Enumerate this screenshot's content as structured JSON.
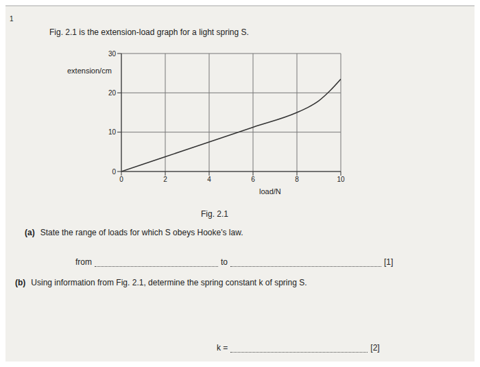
{
  "question_number": "1",
  "intro": "Fig. 2.1 is the extension-load graph for a light spring S.",
  "figure_caption": "Fig. 2.1",
  "chart_data": {
    "type": "line",
    "x_label": "load/N",
    "y_label": "extension/cm",
    "x": [
      0,
      2,
      4,
      6,
      8,
      8.5,
      9,
      9.5,
      10
    ],
    "values": [
      0,
      3.75,
      7.5,
      11.25,
      15,
      16.3,
      18,
      20.5,
      23.5
    ],
    "color": "#333333",
    "marker": "none",
    "line_style": "solid",
    "xlim": [
      0,
      10
    ],
    "ylim": [
      0,
      30
    ],
    "xticks": [
      0,
      2,
      4,
      6,
      8,
      10
    ],
    "yticks": [
      0,
      10,
      20,
      30
    ],
    "grid": true
  },
  "parts": [
    {
      "label": "(a)",
      "text": "State the range of loads for which S obeys Hooke's law.",
      "answer_prefix": "from",
      "answer_middle": "to",
      "marks": "[1]"
    },
    {
      "label": "(b)",
      "text": "Using information from Fig. 2.1, determine the spring constant k of spring S.",
      "answer_prefix": "k =",
      "marks": "[2]"
    }
  ]
}
